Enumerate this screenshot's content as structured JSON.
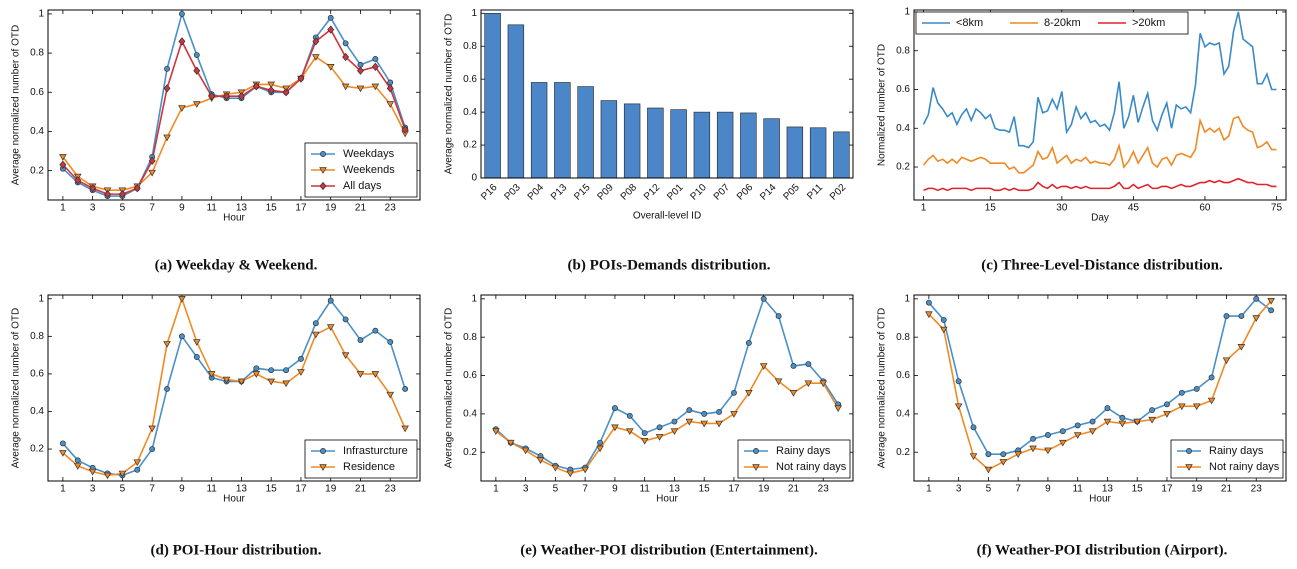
{
  "chart_data": [
    {
      "type": "line",
      "caption": "(a) Weekday & Weekend.",
      "xlabel": "Hour",
      "ylabel": "Average normalized number of OTD",
      "x": [
        1,
        2,
        3,
        4,
        5,
        6,
        7,
        8,
        9,
        10,
        11,
        12,
        13,
        14,
        15,
        16,
        17,
        18,
        19,
        20,
        21,
        22,
        23,
        24
      ],
      "xlim": [
        0,
        25
      ],
      "xticks": [
        1,
        3,
        5,
        7,
        9,
        11,
        13,
        15,
        17,
        19,
        21,
        23
      ],
      "ylim": [
        0.05,
        1.02
      ],
      "yticks": [
        0.2,
        0.4,
        0.6,
        0.8,
        1.0
      ],
      "legend": "lower right",
      "series": [
        {
          "name": "Weekdays",
          "color": "#4a90c8",
          "marker": "circle",
          "values": [
            0.21,
            0.14,
            0.1,
            0.07,
            0.07,
            0.11,
            0.27,
            0.72,
            1.0,
            0.79,
            0.59,
            0.57,
            0.57,
            0.63,
            0.6,
            0.6,
            0.67,
            0.88,
            0.98,
            0.85,
            0.74,
            0.77,
            0.65,
            0.42
          ]
        },
        {
          "name": "Weekends",
          "color": "#f08a24",
          "marker": "triangle",
          "values": [
            0.27,
            0.17,
            0.12,
            0.1,
            0.1,
            0.12,
            0.19,
            0.37,
            0.52,
            0.54,
            0.57,
            0.59,
            0.6,
            0.64,
            0.64,
            0.62,
            0.67,
            0.78,
            0.73,
            0.63,
            0.62,
            0.63,
            0.54,
            0.39
          ]
        },
        {
          "name": "All days",
          "color": "#d0343c",
          "marker": "diamond",
          "values": [
            0.23,
            0.15,
            0.11,
            0.08,
            0.08,
            0.11,
            0.25,
            0.62,
            0.86,
            0.71,
            0.58,
            0.58,
            0.58,
            0.63,
            0.61,
            0.6,
            0.67,
            0.86,
            0.92,
            0.78,
            0.71,
            0.73,
            0.62,
            0.41
          ]
        }
      ]
    },
    {
      "type": "bar",
      "caption": "(b) POIs-Demands distribution.",
      "xlabel": "Overall-level ID",
      "ylabel": "Average normalized number of OTD",
      "categories": [
        "P16",
        "P03",
        "P04",
        "P13",
        "P15",
        "P09",
        "P08",
        "P12",
        "P01",
        "P10",
        "P07",
        "P06",
        "P14",
        "P05",
        "P11",
        "P02"
      ],
      "values": [
        1.0,
        0.93,
        0.58,
        0.58,
        0.555,
        0.47,
        0.45,
        0.425,
        0.415,
        0.4,
        0.4,
        0.395,
        0.36,
        0.31,
        0.305,
        0.28
      ],
      "color": "#4a86c8",
      "ylim": [
        0,
        1.02
      ],
      "yticks": [
        0.0,
        0.2,
        0.4,
        0.6,
        0.8,
        1.0
      ]
    },
    {
      "type": "line",
      "caption": "(c) Three-Level-Distance distribution.",
      "xlabel": "Day",
      "ylabel": "Normalized number of OTD",
      "x": [
        1,
        2,
        3,
        4,
        5,
        6,
        7,
        8,
        9,
        10,
        11,
        12,
        13,
        14,
        15,
        16,
        17,
        18,
        19,
        20,
        21,
        22,
        23,
        24,
        25,
        26,
        27,
        28,
        29,
        30,
        31,
        32,
        33,
        34,
        35,
        36,
        37,
        38,
        39,
        40,
        41,
        42,
        43,
        44,
        45,
        46,
        47,
        48,
        49,
        50,
        51,
        52,
        53,
        54,
        55,
        56,
        57,
        58,
        59,
        60,
        61,
        62,
        63,
        64,
        65,
        66,
        67,
        68,
        69,
        70,
        71,
        72,
        73,
        74,
        75
      ],
      "xlim": [
        -1,
        77
      ],
      "xticks": [
        1,
        15,
        30,
        45,
        60,
        75
      ],
      "ylim": [
        0.03,
        1.01
      ],
      "yticks": [
        0.2,
        0.4,
        0.6,
        0.8,
        1.0
      ],
      "legend": "upper left",
      "series": [
        {
          "name": "<8km",
          "color": "#3a8ac8",
          "marker": "none",
          "values": [
            0.42,
            0.47,
            0.61,
            0.53,
            0.5,
            0.46,
            0.48,
            0.42,
            0.47,
            0.5,
            0.44,
            0.5,
            0.48,
            0.45,
            0.47,
            0.4,
            0.39,
            0.39,
            0.38,
            0.46,
            0.31,
            0.31,
            0.3,
            0.33,
            0.56,
            0.48,
            0.49,
            0.55,
            0.5,
            0.59,
            0.38,
            0.42,
            0.51,
            0.45,
            0.48,
            0.43,
            0.44,
            0.41,
            0.42,
            0.39,
            0.48,
            0.64,
            0.4,
            0.46,
            0.57,
            0.43,
            0.51,
            0.58,
            0.44,
            0.39,
            0.47,
            0.53,
            0.4,
            0.52,
            0.5,
            0.51,
            0.48,
            0.62,
            0.89,
            0.82,
            0.84,
            0.83,
            0.84,
            0.68,
            0.72,
            0.9,
            1.0,
            0.86,
            0.84,
            0.82,
            0.63,
            0.63,
            0.68,
            0.6,
            0.6
          ]
        },
        {
          "name": "8-20km",
          "color": "#f08a24",
          "marker": "none",
          "values": [
            0.21,
            0.24,
            0.26,
            0.23,
            0.24,
            0.22,
            0.24,
            0.22,
            0.25,
            0.24,
            0.23,
            0.24,
            0.25,
            0.24,
            0.22,
            0.22,
            0.22,
            0.22,
            0.19,
            0.2,
            0.17,
            0.17,
            0.19,
            0.21,
            0.28,
            0.24,
            0.25,
            0.3,
            0.22,
            0.24,
            0.26,
            0.22,
            0.24,
            0.23,
            0.25,
            0.22,
            0.23,
            0.22,
            0.22,
            0.21,
            0.24,
            0.31,
            0.2,
            0.23,
            0.28,
            0.22,
            0.26,
            0.3,
            0.22,
            0.2,
            0.24,
            0.25,
            0.21,
            0.26,
            0.27,
            0.26,
            0.25,
            0.29,
            0.44,
            0.38,
            0.4,
            0.38,
            0.4,
            0.34,
            0.36,
            0.45,
            0.46,
            0.41,
            0.39,
            0.38,
            0.3,
            0.31,
            0.33,
            0.29,
            0.29
          ]
        },
        {
          "name": ">20km",
          "color": "#e0242c",
          "marker": "none",
          "values": [
            0.08,
            0.09,
            0.09,
            0.08,
            0.09,
            0.08,
            0.09,
            0.09,
            0.09,
            0.09,
            0.08,
            0.09,
            0.09,
            0.09,
            0.09,
            0.08,
            0.08,
            0.09,
            0.08,
            0.09,
            0.08,
            0.08,
            0.08,
            0.09,
            0.12,
            0.1,
            0.09,
            0.11,
            0.09,
            0.1,
            0.1,
            0.09,
            0.1,
            0.09,
            0.1,
            0.09,
            0.09,
            0.09,
            0.09,
            0.09,
            0.1,
            0.12,
            0.09,
            0.09,
            0.11,
            0.09,
            0.1,
            0.11,
            0.09,
            0.09,
            0.1,
            0.1,
            0.09,
            0.1,
            0.11,
            0.1,
            0.1,
            0.11,
            0.12,
            0.12,
            0.13,
            0.12,
            0.13,
            0.12,
            0.12,
            0.13,
            0.14,
            0.13,
            0.12,
            0.12,
            0.11,
            0.11,
            0.11,
            0.1,
            0.1
          ]
        }
      ]
    },
    {
      "type": "line",
      "caption": "(d) POI-Hour distribution.",
      "xlabel": "Hour",
      "ylabel": "Average normalized number of OTD",
      "x": [
        1,
        2,
        3,
        4,
        5,
        6,
        7,
        8,
        9,
        10,
        11,
        12,
        13,
        14,
        15,
        16,
        17,
        18,
        19,
        20,
        21,
        22,
        23,
        24
      ],
      "xlim": [
        0,
        25
      ],
      "xticks": [
        1,
        3,
        5,
        7,
        9,
        11,
        13,
        15,
        17,
        19,
        21,
        23
      ],
      "ylim": [
        0.03,
        1.02
      ],
      "yticks": [
        0.2,
        0.4,
        0.6,
        0.8,
        1.0
      ],
      "legend": "lower right",
      "series": [
        {
          "name": "Infrasturcture",
          "color": "#4a90c8",
          "marker": "circle",
          "values": [
            0.23,
            0.14,
            0.1,
            0.07,
            0.06,
            0.09,
            0.2,
            0.52,
            0.8,
            0.69,
            0.58,
            0.56,
            0.56,
            0.63,
            0.62,
            0.62,
            0.68,
            0.87,
            0.99,
            0.89,
            0.78,
            0.83,
            0.77,
            0.52
          ]
        },
        {
          "name": "Residence",
          "color": "#f08a24",
          "marker": "triangle",
          "values": [
            0.18,
            0.11,
            0.08,
            0.06,
            0.07,
            0.13,
            0.31,
            0.76,
            1.0,
            0.77,
            0.6,
            0.57,
            0.56,
            0.6,
            0.56,
            0.55,
            0.61,
            0.81,
            0.85,
            0.7,
            0.6,
            0.6,
            0.49,
            0.31
          ]
        }
      ]
    },
    {
      "type": "line",
      "caption": "(e) Weather-POI distribution (Entertainment).",
      "xlabel": "Hour",
      "ylabel": "Average normalized number of OTD",
      "x": [
        1,
        2,
        3,
        4,
        5,
        6,
        7,
        8,
        9,
        10,
        11,
        12,
        13,
        14,
        15,
        16,
        17,
        18,
        19,
        20,
        21,
        22,
        23,
        24
      ],
      "xlim": [
        0,
        25
      ],
      "xticks": [
        1,
        3,
        5,
        7,
        9,
        11,
        13,
        15,
        17,
        19,
        21,
        23
      ],
      "ylim": [
        0.05,
        1.02
      ],
      "yticks": [
        0.2,
        0.4,
        0.6,
        0.8,
        1.0
      ],
      "legend": "lower right",
      "series": [
        {
          "name": "Rainy days",
          "color": "#4a90c8",
          "marker": "circle",
          "values": [
            0.32,
            0.25,
            0.22,
            0.18,
            0.13,
            0.11,
            0.12,
            0.25,
            0.43,
            0.39,
            0.3,
            0.33,
            0.36,
            0.42,
            0.4,
            0.41,
            0.51,
            0.77,
            1.0,
            0.91,
            0.65,
            0.66,
            0.57,
            0.45
          ]
        },
        {
          "name": "Not rainy days",
          "color": "#f08a24",
          "marker": "triangle",
          "values": [
            0.31,
            0.25,
            0.21,
            0.16,
            0.12,
            0.09,
            0.11,
            0.22,
            0.33,
            0.31,
            0.26,
            0.28,
            0.31,
            0.36,
            0.35,
            0.35,
            0.4,
            0.51,
            0.65,
            0.57,
            0.51,
            0.56,
            0.56,
            0.43
          ]
        }
      ]
    },
    {
      "type": "line",
      "caption": "(f) Weather-POI distribution (Airport).",
      "xlabel": "Hour",
      "ylabel": "Average normalized number of OTD",
      "x": [
        1,
        2,
        3,
        4,
        5,
        6,
        7,
        8,
        9,
        10,
        11,
        12,
        13,
        14,
        15,
        16,
        17,
        18,
        19,
        20,
        21,
        22,
        23,
        24
      ],
      "xlim": [
        0,
        25
      ],
      "xticks": [
        1,
        3,
        5,
        7,
        9,
        11,
        13,
        15,
        17,
        19,
        21,
        23
      ],
      "ylim": [
        0.05,
        1.02
      ],
      "yticks": [
        0.2,
        0.4,
        0.6,
        0.8,
        1.0
      ],
      "legend": "lower right",
      "series": [
        {
          "name": "Rainy days",
          "color": "#4a90c8",
          "marker": "circle",
          "values": [
            0.98,
            0.89,
            0.57,
            0.33,
            0.19,
            0.19,
            0.21,
            0.27,
            0.29,
            0.31,
            0.34,
            0.36,
            0.43,
            0.38,
            0.36,
            0.42,
            0.45,
            0.51,
            0.53,
            0.59,
            0.91,
            0.91,
            1.0,
            0.94
          ]
        },
        {
          "name": "Not rainy days",
          "color": "#f08a24",
          "marker": "triangle",
          "values": [
            0.92,
            0.84,
            0.44,
            0.18,
            0.11,
            0.15,
            0.19,
            0.22,
            0.21,
            0.25,
            0.29,
            0.31,
            0.36,
            0.35,
            0.36,
            0.37,
            0.4,
            0.44,
            0.44,
            0.47,
            0.68,
            0.75,
            0.9,
            0.99
          ]
        }
      ]
    }
  ]
}
